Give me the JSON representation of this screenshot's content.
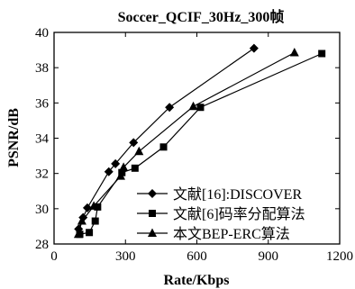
{
  "chart_data": {
    "type": "line",
    "title": "Soccer_QCIF_30Hz_300帧",
    "xlabel": "Rate/Kbps",
    "ylabel": "PSNR/dB",
    "xlim": [
      0,
      1200
    ],
    "ylim": [
      28,
      40
    ],
    "xticks": [
      0,
      300,
      600,
      900,
      1200
    ],
    "yticks": [
      28,
      30,
      32,
      34,
      36,
      38,
      40
    ],
    "grid": false,
    "legend_position": "bottom-right",
    "series": [
      {
        "name": "文献[16]:DISCOVER",
        "marker": "diamond",
        "x": [
          103,
          122,
          140,
          230,
          258,
          334,
          485,
          840
        ],
        "y": [
          28.85,
          29.5,
          30.05,
          32.1,
          32.55,
          33.75,
          35.75,
          39.1
        ]
      },
      {
        "name": "文献[6]码率分配算法",
        "marker": "square",
        "x": [
          108,
          148,
          173,
          183,
          285,
          340,
          460,
          615,
          1125
        ],
        "y": [
          28.55,
          28.65,
          29.3,
          30.1,
          32.05,
          32.3,
          33.5,
          35.75,
          38.8
        ]
      },
      {
        "name": "本文BEP-ERC算法",
        "marker": "triangle",
        "x": [
          102,
          117,
          167,
          280,
          292,
          357,
          585,
          1010
        ],
        "y": [
          28.55,
          29.3,
          30.15,
          31.85,
          32.35,
          33.25,
          35.8,
          38.85
        ]
      }
    ]
  }
}
